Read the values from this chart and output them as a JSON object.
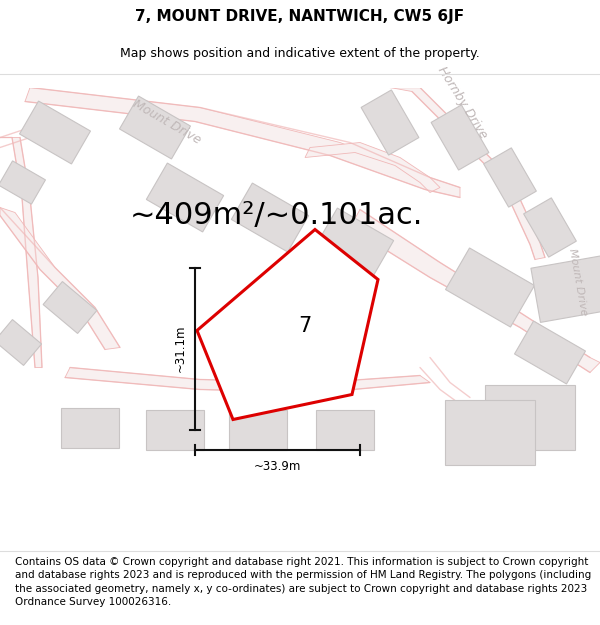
{
  "title": "7, MOUNT DRIVE, NANTWICH, CW5 6JF",
  "subtitle": "Map shows position and indicative extent of the property.",
  "area_label": "~409m²/~0.101ac.",
  "plot_number": "7",
  "width_label": "~33.9m",
  "height_label": "~31.1m",
  "footer": "Contains OS data © Crown copyright and database right 2021. This information is subject to Crown copyright and database rights 2023 and is reproduced with the permission of HM Land Registry. The polygons (including the associated geometry, namely x, y co-ordinates) are subject to Crown copyright and database rights 2023 Ordnance Survey 100026316.",
  "map_bg": "#f7f5f5",
  "road_color": "#f0b8b8",
  "road_fill": "#f8f0f0",
  "building_color": "#e0dcdc",
  "building_edge": "#c8c4c4",
  "highlight_color": "#dd0000",
  "road_label_color": "#c0b8b8",
  "dim_line_color": "#111111",
  "title_fontsize": 11,
  "subtitle_fontsize": 9,
  "area_fontsize": 22,
  "footer_fontsize": 7.5
}
